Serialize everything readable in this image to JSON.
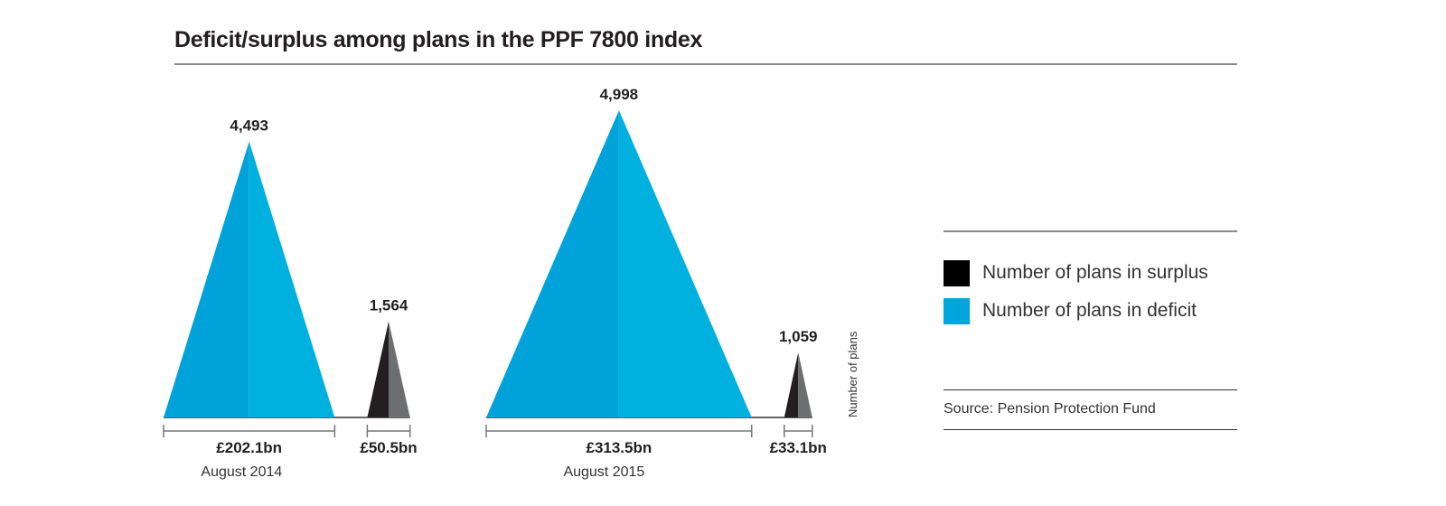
{
  "chart_data": {
    "type": "area",
    "title": "Deficit/surplus among plans in the PPF 7800 index",
    "ylabel": "Number of plans",
    "groups": [
      {
        "period": "August 2014",
        "deficit": {
          "plans": 4493,
          "plans_label": "4,493",
          "amount_bn": 202.1,
          "amount_label": "£202.1bn"
        },
        "surplus": {
          "plans": 1564,
          "plans_label": "1,564",
          "amount_bn": 50.5,
          "amount_label": "£50.5bn"
        }
      },
      {
        "period": "August 2015",
        "deficit": {
          "plans": 4998,
          "plans_label": "4,998",
          "amount_bn": 313.5,
          "amount_label": "£313.5bn"
        },
        "surplus": {
          "plans": 1059,
          "plans_label": "1,059",
          "amount_bn": 33.1,
          "amount_label": "£33.1bn"
        }
      }
    ],
    "legend": [
      {
        "label": "Number of plans in surplus",
        "color": "#000000"
      },
      {
        "label": "Number of plans in deficit",
        "color": "#00a6db"
      }
    ],
    "legend_position": "right",
    "source": "Source: Pension Protection Fund"
  },
  "colors": {
    "deficit_left": "#00a3d9",
    "deficit_right": "#00b0df",
    "surplus_left": "#231f20",
    "surplus_right": "#6d6e70",
    "axis": "#666666"
  }
}
